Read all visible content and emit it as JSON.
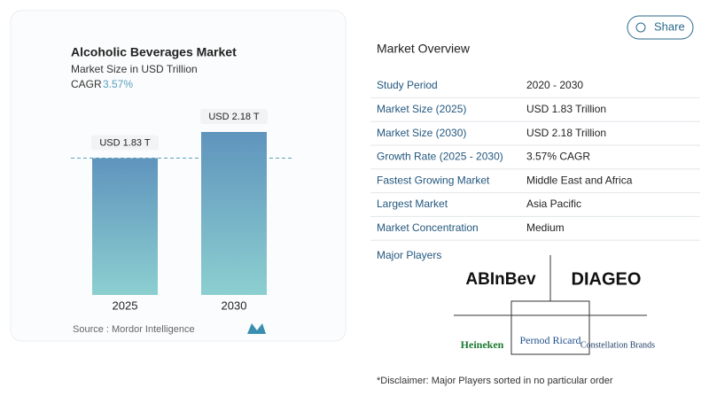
{
  "chart_data": {
    "type": "bar",
    "title": "Alcoholic Beverages Market",
    "subtitle": "Market Size in USD Trillion",
    "cagr_label": "CAGR",
    "cagr_value": "3.57%",
    "categories": [
      "2025",
      "2030"
    ],
    "values": [
      1.83,
      2.18
    ],
    "value_labels": [
      "USD 1.83 T",
      "USD 2.18 T"
    ],
    "color": "#5f94bd",
    "source": "Source :  Mordor Intelligence"
  },
  "share": "Share",
  "overview": {
    "title": "Market Overview",
    "rows": [
      [
        "Study Period",
        "2020 - 2030"
      ],
      [
        "Market Size (2025)",
        "USD 1.83 Trillion"
      ],
      [
        "Market Size (2030)",
        "USD 2.18 Trillion"
      ],
      [
        "Growth Rate (2025 - 2030)",
        "3.57% CAGR"
      ],
      [
        "Fastest Growing Market",
        "Middle East and Africa"
      ],
      [
        "Largest Market",
        "Asia Pacific"
      ],
      [
        "Market Concentration",
        "Medium"
      ]
    ]
  },
  "players": {
    "title": "Major Players",
    "names": [
      "ABInBev",
      "DIAGEO",
      "Heineken",
      "Pernod Ricard",
      "Constellation Brands"
    ]
  },
  "disclaimer": "*Disclaimer: Major Players sorted in no particular order"
}
